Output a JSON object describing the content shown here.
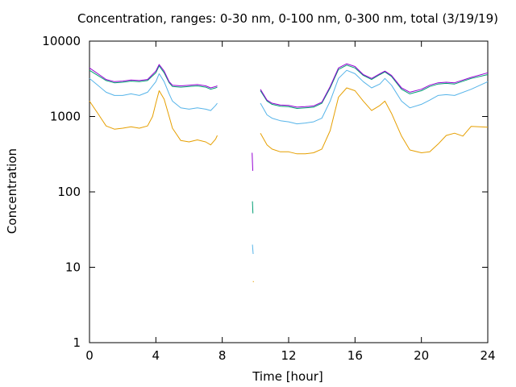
{
  "chart_data": {
    "type": "line",
    "title": "Concentration, ranges: 0-30 nm, 0-100 nm, 0-300 nm, total (3/19/19)",
    "xlabel": "Time [hour]",
    "ylabel": "Concentration",
    "xlim": [
      0,
      24
    ],
    "ylim": [
      1,
      10000
    ],
    "yscale": "log",
    "grid": false,
    "legend": "none",
    "x_ticks": [
      "0",
      "4",
      "8",
      "12",
      "16",
      "20",
      "24"
    ],
    "x_tick_values": [
      0,
      4,
      8,
      12,
      16,
      20,
      24
    ],
    "y_ticks": [
      "1",
      "10",
      "100",
      "1000",
      "10000"
    ],
    "y_tick_values": [
      1,
      10,
      100,
      1000,
      10000
    ],
    "series": [
      {
        "color": "#e69f00",
        "segments": [
          [
            [
              0,
              1600
            ],
            [
              0.5,
              1100
            ],
            [
              1,
              750
            ],
            [
              1.5,
              680
            ],
            [
              2,
              700
            ],
            [
              2.5,
              730
            ],
            [
              3,
              700
            ],
            [
              3.5,
              750
            ],
            [
              3.8,
              1000
            ],
            [
              4,
              1500
            ],
            [
              4.2,
              2200
            ],
            [
              4.5,
              1700
            ],
            [
              4.8,
              1000
            ],
            [
              5,
              700
            ],
            [
              5.5,
              480
            ],
            [
              6,
              460
            ],
            [
              6.5,
              490
            ],
            [
              7,
              460
            ],
            [
              7.3,
              420
            ],
            [
              7.6,
              500
            ],
            [
              7.7,
              560
            ]
          ],
          [
            [
              9.85,
              6.5
            ],
            [
              9.9,
              6.4
            ]
          ],
          [
            [
              10.3,
              600
            ],
            [
              10.7,
              420
            ],
            [
              11,
              370
            ],
            [
              11.5,
              340
            ],
            [
              12,
              340
            ],
            [
              12.5,
              320
            ],
            [
              13,
              320
            ],
            [
              13.5,
              330
            ],
            [
              14,
              370
            ],
            [
              14.5,
              650
            ],
            [
              15,
              1800
            ],
            [
              15.5,
              2400
            ],
            [
              16,
              2200
            ],
            [
              16.5,
              1600
            ],
            [
              17,
              1200
            ],
            [
              17.5,
              1400
            ],
            [
              17.8,
              1600
            ],
            [
              18.2,
              1100
            ],
            [
              18.8,
              550
            ],
            [
              19.3,
              360
            ],
            [
              20,
              330
            ],
            [
              20.5,
              340
            ],
            [
              21,
              430
            ],
            [
              21.5,
              560
            ],
            [
              22,
              600
            ],
            [
              22.5,
              550
            ],
            [
              23,
              740
            ],
            [
              24,
              720
            ]
          ]
        ]
      },
      {
        "color": "#56b4e9",
        "segments": [
          [
            [
              0,
              3200
            ],
            [
              0.5,
              2600
            ],
            [
              1,
              2100
            ],
            [
              1.5,
              1900
            ],
            [
              2,
              1900
            ],
            [
              2.5,
              2000
            ],
            [
              3,
              1900
            ],
            [
              3.5,
              2100
            ],
            [
              4,
              2900
            ],
            [
              4.2,
              3700
            ],
            [
              4.5,
              2900
            ],
            [
              4.8,
              2000
            ],
            [
              5,
              1600
            ],
            [
              5.5,
              1300
            ],
            [
              6,
              1250
            ],
            [
              6.5,
              1300
            ],
            [
              7,
              1250
            ],
            [
              7.3,
              1200
            ],
            [
              7.6,
              1400
            ],
            [
              7.7,
              1500
            ]
          ],
          [
            [
              9.82,
              20
            ],
            [
              9.86,
              15
            ]
          ],
          [
            [
              10.3,
              1500
            ],
            [
              10.7,
              1050
            ],
            [
              11,
              950
            ],
            [
              11.5,
              880
            ],
            [
              12,
              850
            ],
            [
              12.5,
              800
            ],
            [
              13,
              820
            ],
            [
              13.5,
              850
            ],
            [
              14,
              950
            ],
            [
              14.5,
              1600
            ],
            [
              15,
              3200
            ],
            [
              15.5,
              4100
            ],
            [
              16,
              3700
            ],
            [
              16.5,
              2900
            ],
            [
              17,
              2400
            ],
            [
              17.5,
              2700
            ],
            [
              17.8,
              3200
            ],
            [
              18.2,
              2600
            ],
            [
              18.8,
              1600
            ],
            [
              19.3,
              1300
            ],
            [
              20,
              1450
            ],
            [
              20.5,
              1650
            ],
            [
              21,
              1900
            ],
            [
              21.5,
              1950
            ],
            [
              22,
              1900
            ],
            [
              23,
              2300
            ],
            [
              24,
              2900
            ]
          ]
        ]
      },
      {
        "color": "#009e73",
        "segments": [
          [
            [
              0,
              4100
            ],
            [
              0.5,
              3500
            ],
            [
              1,
              3000
            ],
            [
              1.5,
              2800
            ],
            [
              2,
              2850
            ],
            [
              2.5,
              2950
            ],
            [
              3,
              2900
            ],
            [
              3.5,
              3000
            ],
            [
              4,
              3800
            ],
            [
              4.2,
              4700
            ],
            [
              4.5,
              3800
            ],
            [
              4.8,
              2800
            ],
            [
              5,
              2500
            ],
            [
              5.5,
              2450
            ],
            [
              6,
              2500
            ],
            [
              6.5,
              2550
            ],
            [
              7,
              2450
            ],
            [
              7.3,
              2300
            ],
            [
              7.6,
              2400
            ],
            [
              7.7,
              2450
            ]
          ],
          [
            [
              9.82,
              75
            ],
            [
              9.85,
              52
            ]
          ],
          [
            [
              10.3,
              2200
            ],
            [
              10.7,
              1600
            ],
            [
              11,
              1450
            ],
            [
              11.5,
              1370
            ],
            [
              12,
              1350
            ],
            [
              12.5,
              1280
            ],
            [
              13,
              1300
            ],
            [
              13.5,
              1330
            ],
            [
              14,
              1500
            ],
            [
              14.5,
              2400
            ],
            [
              15,
              4200
            ],
            [
              15.5,
              4800
            ],
            [
              16,
              4400
            ],
            [
              16.5,
              3500
            ],
            [
              17,
              3100
            ],
            [
              17.5,
              3600
            ],
            [
              17.8,
              3900
            ],
            [
              18.2,
              3400
            ],
            [
              18.8,
              2300
            ],
            [
              19.3,
              2000
            ],
            [
              20,
              2200
            ],
            [
              20.5,
              2500
            ],
            [
              21,
              2700
            ],
            [
              21.5,
              2750
            ],
            [
              22,
              2700
            ],
            [
              23,
              3200
            ],
            [
              24,
              3600
            ]
          ]
        ]
      },
      {
        "color": "#9400d3",
        "segments": [
          [
            [
              0,
              4400
            ],
            [
              0.5,
              3700
            ],
            [
              1,
              3100
            ],
            [
              1.5,
              2900
            ],
            [
              2,
              2950
            ],
            [
              2.5,
              3050
            ],
            [
              3,
              3000
            ],
            [
              3.5,
              3100
            ],
            [
              4,
              4000
            ],
            [
              4.2,
              4900
            ],
            [
              4.5,
              4000
            ],
            [
              4.8,
              2900
            ],
            [
              5,
              2600
            ],
            [
              5.5,
              2550
            ],
            [
              6,
              2600
            ],
            [
              6.5,
              2650
            ],
            [
              7,
              2550
            ],
            [
              7.3,
              2400
            ],
            [
              7.6,
              2500
            ],
            [
              7.7,
              2550
            ]
          ],
          [
            [
              9.8,
              330
            ],
            [
              9.84,
              190
            ]
          ],
          [
            [
              10.3,
              2300
            ],
            [
              10.7,
              1650
            ],
            [
              11,
              1500
            ],
            [
              11.5,
              1420
            ],
            [
              12,
              1400
            ],
            [
              12.5,
              1330
            ],
            [
              13,
              1350
            ],
            [
              13.5,
              1380
            ],
            [
              14,
              1550
            ],
            [
              14.5,
              2500
            ],
            [
              15,
              4400
            ],
            [
              15.5,
              5000
            ],
            [
              16,
              4600
            ],
            [
              16.5,
              3600
            ],
            [
              17,
              3200
            ],
            [
              17.5,
              3700
            ],
            [
              17.8,
              4000
            ],
            [
              18.2,
              3500
            ],
            [
              18.8,
              2400
            ],
            [
              19.3,
              2100
            ],
            [
              20,
              2300
            ],
            [
              20.5,
              2600
            ],
            [
              21,
              2800
            ],
            [
              21.5,
              2850
            ],
            [
              22,
              2800
            ],
            [
              23,
              3300
            ],
            [
              24,
              3800
            ]
          ]
        ]
      }
    ]
  }
}
